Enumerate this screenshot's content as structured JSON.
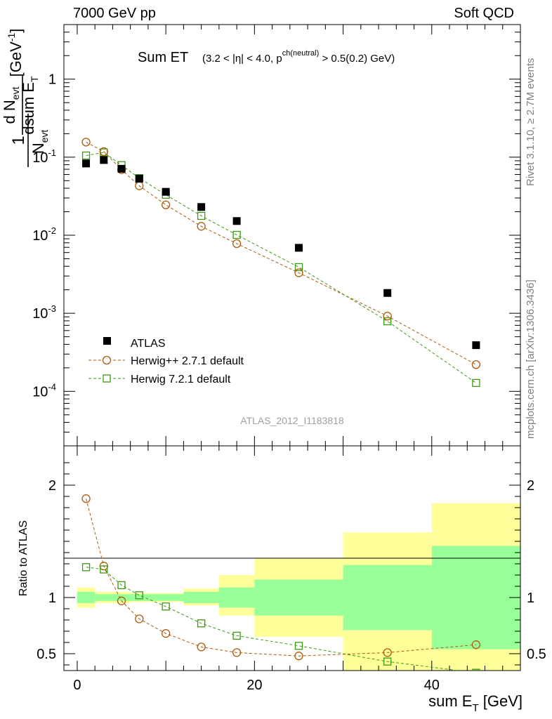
{
  "header": {
    "left": "7000 GeV pp",
    "right": "Soft QCD"
  },
  "side_labels": {
    "rivet": "Rivet 3.1.10, ≥ 2.7M events",
    "mcplots": "mcplots.cern.ch [arXiv:1306.3436]"
  },
  "chart_data": [
    {
      "type": "scatter",
      "panel": "main",
      "title": "Sum ET",
      "title_conditions": "(3.2 < |η| < 4.0, p^{ch(neutral)} > 0.5(0.2) GeV)",
      "ylabel": "1/N_evt dN_evt/dsum E_T [GeV^-1]",
      "xlabel": "sum E_T [GeV]",
      "y_scale": "log",
      "ylim": [
        2e-05,
        5
      ],
      "xlim": [
        -1.5,
        50
      ],
      "x_ticks": [
        0,
        20,
        40
      ],
      "y_tick_labels": [
        "10^{-4}",
        "10^{-3}",
        "10^{-2}",
        "10^{-1}",
        "1"
      ],
      "watermark": "ATLAS_2012_I1183818",
      "legend_position": "bottom-left",
      "series": [
        {
          "name": "ATLAS",
          "style": "filled-square",
          "color": "#000000",
          "x": [
            1,
            3,
            5,
            7,
            10,
            14,
            18,
            25,
            35,
            45
          ],
          "y": [
            0.083,
            0.092,
            0.071,
            0.053,
            0.036,
            0.023,
            0.0152,
            0.0069,
            0.00182,
            0.00039
          ]
        },
        {
          "name": "Herwig++ 2.7.1 default",
          "style": "open-circle-dashed",
          "color": "#b05a0a",
          "x": [
            1,
            3,
            5,
            7,
            10,
            14,
            18,
            25,
            35,
            45
          ],
          "y": [
            0.156,
            0.118,
            0.069,
            0.043,
            0.0245,
            0.013,
            0.0078,
            0.0033,
            0.00092,
            0.00022
          ]
        },
        {
          "name": "Herwig 7.2.1 default",
          "style": "open-square-dashed",
          "color": "#3a9a10",
          "x": [
            1,
            3,
            5,
            7,
            10,
            14,
            18,
            25,
            35,
            45
          ],
          "y": [
            0.105,
            0.115,
            0.079,
            0.054,
            0.033,
            0.0177,
            0.0101,
            0.0039,
            0.00079,
            0.000128
          ]
        }
      ]
    },
    {
      "type": "scatter",
      "panel": "ratio",
      "ylabel": "Ratio to ATLAS",
      "xlabel": "sum E_T [GeV]",
      "ylim": [
        0.35,
        2.35
      ],
      "xlim": [
        -1.5,
        50
      ],
      "y_tick_labels": [
        "0.5",
        "1",
        "2"
      ],
      "bands": {
        "edges": [
          0,
          2,
          4,
          6,
          8,
          12,
          16,
          20,
          30,
          40,
          50
        ],
        "yellow_lo": [
          0.91,
          0.95,
          0.95,
          0.96,
          0.96,
          0.93,
          0.84,
          0.65,
          0.35,
          0.35
        ],
        "yellow_hi": [
          1.09,
          1.05,
          1.05,
          1.04,
          1.04,
          1.08,
          1.2,
          1.35,
          1.58,
          1.84
        ],
        "green_lo": [
          0.95,
          0.97,
          0.97,
          0.97,
          0.97,
          0.95,
          0.91,
          0.84,
          0.71,
          0.54
        ],
        "green_hi": [
          1.05,
          1.03,
          1.03,
          1.03,
          1.03,
          1.05,
          1.09,
          1.16,
          1.29,
          1.46
        ],
        "yellow_color": "#ffff99",
        "green_color": "#99ff99"
      },
      "series": [
        {
          "name": "Herwig++ 2.7.1 default",
          "color": "#b05a0a",
          "x": [
            1,
            3,
            5,
            7,
            10,
            14,
            18,
            25,
            35,
            45
          ],
          "y": [
            1.88,
            1.28,
            0.97,
            0.81,
            0.68,
            0.56,
            0.51,
            0.48,
            0.51,
            0.58
          ]
        },
        {
          "name": "Herwig 7.2.1 default",
          "color": "#3a9a10",
          "x": [
            1,
            3,
            5,
            7,
            10,
            14,
            18,
            25,
            35,
            45
          ],
          "y": [
            1.27,
            1.25,
            1.11,
            1.02,
            0.92,
            0.77,
            0.66,
            0.57,
            0.43,
            0.33
          ]
        }
      ]
    }
  ]
}
